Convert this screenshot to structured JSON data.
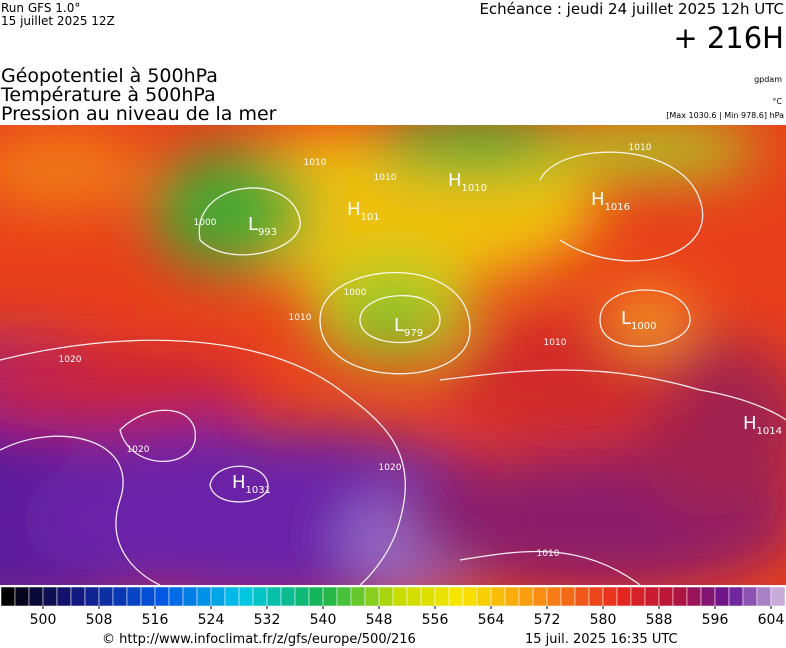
{
  "header": {
    "run": "Run GFS 1.0°",
    "run_date": "15 juillet 2025 12Z",
    "valid": "Echéance : jeudi 24 juillet 2025 12h UTC",
    "lead": "+ 216H"
  },
  "fields": [
    "Géopotentiel à 500hPa",
    "Température à 500hPa",
    "Pression au niveau de la mer"
  ],
  "units": {
    "geopotential": "gpdam",
    "temperature": "°C",
    "pressure": "[Max 1030.6 | Min 978.6] hPa"
  },
  "centers": [
    {
      "letter": "H",
      "value": "1010"
    },
    {
      "letter": "H",
      "value": "1016"
    },
    {
      "letter": "H",
      "value": "101"
    },
    {
      "letter": "L",
      "value": "993"
    },
    {
      "letter": "L",
      "value": "979"
    },
    {
      "letter": "L",
      "value": "1000"
    },
    {
      "letter": "H",
      "value": "1014"
    },
    {
      "letter": "H",
      "value": "1031"
    }
  ],
  "isobar_labels": [
    "1000",
    "1010",
    "1010",
    "1000",
    "1010",
    "1020",
    "1020",
    "1020",
    "1010",
    "1010",
    "1010"
  ],
  "colorbar": {
    "ticks": [
      500,
      508,
      516,
      524,
      532,
      540,
      548,
      556,
      564,
      572,
      580,
      588,
      596,
      604
    ]
  },
  "footer": {
    "source": "© http://www.infoclimat.fr/z/gfs/europe/500/216",
    "generated": "15 juil. 2025 16:35 UTC"
  }
}
